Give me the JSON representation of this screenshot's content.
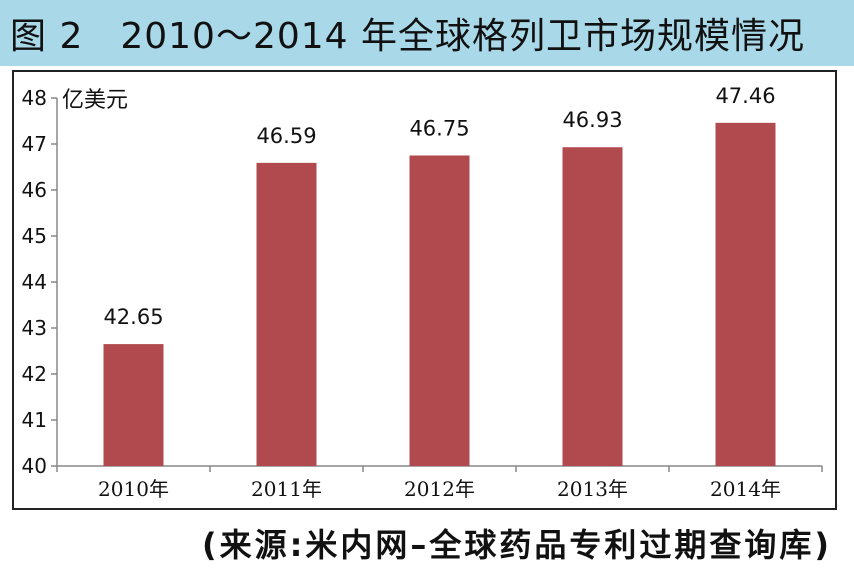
{
  "title": "图 2　2010～2014 年全球格列卫市场规模情况",
  "source": "(来源:米内网–全球药品专利过期查询库)",
  "chart_data": {
    "type": "bar",
    "categories": [
      "2010年",
      "2011年",
      "2012年",
      "2013年",
      "2014年"
    ],
    "values": [
      42.65,
      46.59,
      46.75,
      46.93,
      47.46
    ],
    "data_labels": [
      "42.65",
      "46.59",
      "46.75",
      "46.93",
      "47.46"
    ],
    "ylabel": "亿美元",
    "ylim": [
      40,
      48
    ],
    "yticks": [
      40,
      41,
      42,
      43,
      44,
      45,
      46,
      47,
      48
    ],
    "grid": false,
    "bar_color": "#b04a4e"
  }
}
